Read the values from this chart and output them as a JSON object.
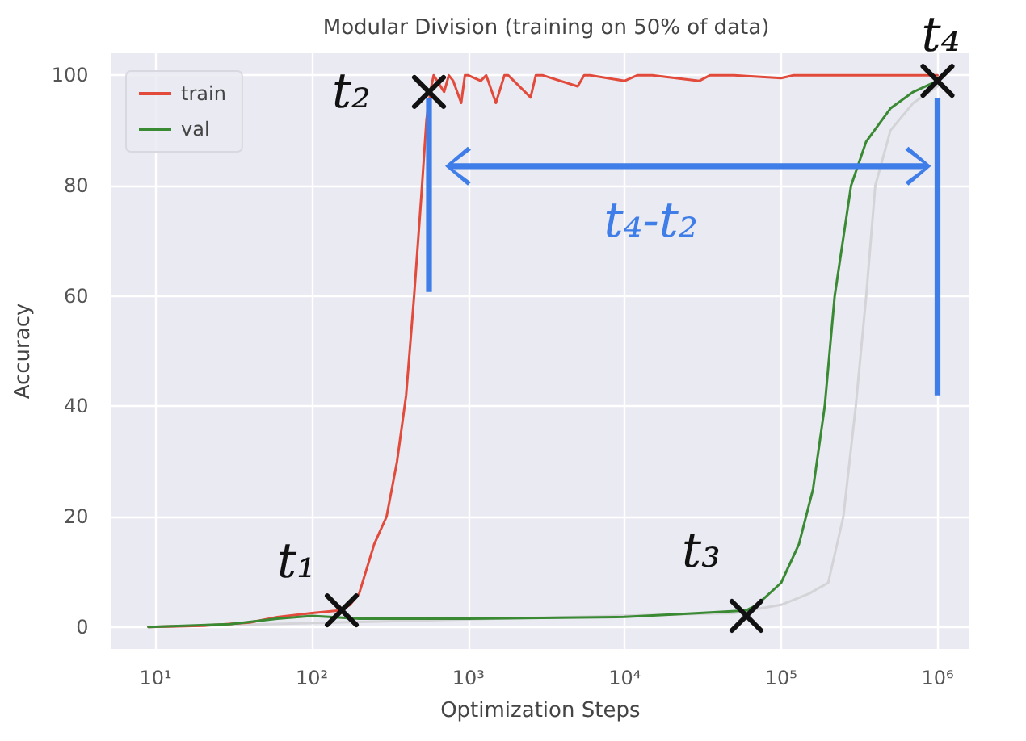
{
  "chart_data": {
    "type": "line",
    "title": "Modular Division (training on 50% of data)",
    "xlabel": "Optimization Steps",
    "ylabel": "Accuracy",
    "log": "x",
    "xlim": [
      5.2,
      1600000
    ],
    "xticks": [
      {
        "value": 10,
        "label": "10¹"
      },
      {
        "value": 100,
        "label": "10²"
      },
      {
        "value": 1000,
        "label": "10³"
      },
      {
        "value": 10000,
        "label": "10⁴"
      },
      {
        "value": 100000,
        "label": "10⁵"
      },
      {
        "value": 1000000,
        "label": "10⁶"
      }
    ],
    "ylim": [
      -4,
      104
    ],
    "yticks": [
      0,
      20,
      40,
      60,
      80,
      100
    ],
    "grid": true,
    "legend": "top left",
    "marker": "none",
    "line_style": "solid",
    "series": [
      {
        "color": "#d3d3d8",
        "x": [
          9,
          50000,
          100000,
          150000,
          200000,
          250000,
          300000,
          350000,
          400000,
          500000,
          700000,
          1000000
        ],
        "values": [
          0,
          2.5,
          4,
          6,
          8,
          20,
          40,
          60,
          80,
          90,
          95,
          98
        ]
      },
      {
        "name": "train",
        "color": "#e24a3b",
        "x": [
          9,
          20,
          40,
          60,
          100,
          150,
          175,
          200,
          250,
          300,
          350,
          400,
          450,
          500,
          540,
          580,
          600,
          700,
          750,
          800,
          900,
          950,
          1000,
          1200,
          1300,
          1500,
          1700,
          1800,
          2500,
          2700,
          3000,
          5000,
          5500,
          6000,
          10000,
          12000,
          15000,
          30000,
          35000,
          50000,
          100000,
          120000,
          200000,
          1000000
        ],
        "values": [
          0,
          0.2,
          0.8,
          1.8,
          2.5,
          3,
          4,
          6,
          15,
          20,
          30,
          42,
          60,
          78,
          92,
          98,
          100,
          97,
          100,
          99,
          95,
          100,
          100,
          99,
          100,
          95,
          100,
          100,
          96,
          100,
          100,
          98,
          100,
          100,
          99,
          100,
          100,
          99,
          100,
          100,
          99.5,
          100,
          100,
          100
        ]
      },
      {
        "name": "val",
        "color": "#3a8a34",
        "x": [
          9,
          30,
          60,
          100,
          200,
          1000,
          10000,
          30000,
          60000,
          70000,
          100000,
          130000,
          160000,
          190000,
          220000,
          280000,
          350000,
          500000,
          700000,
          1000000
        ],
        "values": [
          0,
          0.5,
          1.5,
          2,
          1.5,
          1.5,
          1.8,
          2.5,
          3,
          4,
          8,
          15,
          25,
          40,
          60,
          80,
          88,
          94,
          97,
          99
        ]
      }
    ],
    "annotations": [
      {
        "text": "t₁",
        "x": 155,
        "y": 3
      },
      {
        "text": "t₂",
        "x": 560,
        "y": 97
      },
      {
        "text": "t₃",
        "x": 60000,
        "y": 2
      },
      {
        "text": "t₄",
        "x": 1000000,
        "y": 99
      },
      "t₄-t₂"
    ]
  }
}
